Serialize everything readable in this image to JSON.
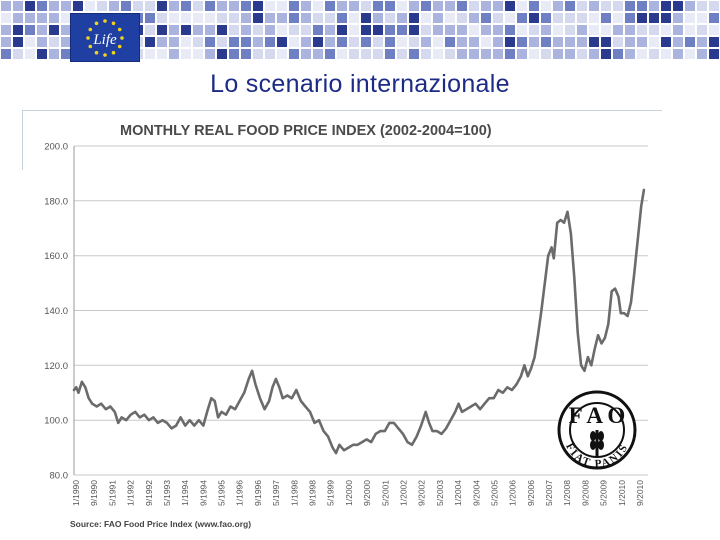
{
  "header": {
    "logo_text": "Life",
    "title": "Lo scenario internazionale"
  },
  "colors": {
    "title": "#1b2b86",
    "line": "#6b6b6b",
    "grid": "#c9c9c9",
    "logo_bg": "#1f3fa3",
    "stars": "#f2d21b",
    "mosaic": [
      "#2a3b8f",
      "#6f7fc4",
      "#aab4de",
      "#d4d9ee",
      "#e8ebf6"
    ]
  },
  "logos": {
    "fao_letters": "F A O",
    "fao_motto": "FIAT PANIS"
  },
  "chart_data": {
    "type": "line",
    "title": "MONTHLY REAL FOOD PRICE INDEX (2002-2004=100)",
    "xlabel": "",
    "ylabel": "",
    "ylim": [
      80,
      200
    ],
    "yticks": [
      "200.0",
      "180.0",
      "160.0",
      "140.0",
      "120.0",
      "100.0",
      "80.0"
    ],
    "xticks": [
      "1/1990",
      "9/1990",
      "5/1991",
      "1/1992",
      "9/1992",
      "5/1993",
      "1/1994",
      "9/1994",
      "5/1995",
      "1/1996",
      "9/1996",
      "5/1997",
      "1/1998",
      "9/1998",
      "5/1999",
      "1/2000",
      "9/2000",
      "5/2001",
      "1/2002",
      "9/2002",
      "5/2003",
      "1/2004",
      "9/2004",
      "5/2005",
      "1/2006",
      "9/2006",
      "5/2007",
      "1/2008",
      "9/2008",
      "5/2009",
      "1/2010",
      "9/2010"
    ],
    "grid": true,
    "source": "Source: FAO Food Price Index (www.fao.org)",
    "series": [
      {
        "values": [
          [
            1990.0,
            111
          ],
          [
            1990.1,
            112
          ],
          [
            1990.2,
            110
          ],
          [
            1990.35,
            114
          ],
          [
            1990.5,
            112
          ],
          [
            1990.65,
            108
          ],
          [
            1990.8,
            106
          ],
          [
            1991.0,
            105
          ],
          [
            1991.2,
            106
          ],
          [
            1991.4,
            104
          ],
          [
            1991.6,
            105
          ],
          [
            1991.8,
            103
          ],
          [
            1991.95,
            99
          ],
          [
            1992.1,
            101
          ],
          [
            1992.3,
            100
          ],
          [
            1992.5,
            102
          ],
          [
            1992.7,
            103
          ],
          [
            1992.9,
            101
          ],
          [
            1993.1,
            102
          ],
          [
            1993.3,
            100
          ],
          [
            1993.5,
            101
          ],
          [
            1993.7,
            99
          ],
          [
            1993.9,
            100
          ],
          [
            1994.1,
            99
          ],
          [
            1994.3,
            97
          ],
          [
            1994.5,
            98
          ],
          [
            1994.7,
            101
          ],
          [
            1994.9,
            98
          ],
          [
            1995.1,
            100
          ],
          [
            1995.3,
            98
          ],
          [
            1995.5,
            100
          ],
          [
            1995.7,
            98
          ],
          [
            1995.9,
            104
          ],
          [
            1996.05,
            108
          ],
          [
            1996.2,
            107
          ],
          [
            1996.35,
            101
          ],
          [
            1996.5,
            103
          ],
          [
            1996.7,
            102
          ],
          [
            1996.9,
            105
          ],
          [
            1997.1,
            104
          ],
          [
            1997.3,
            107
          ],
          [
            1997.5,
            110
          ],
          [
            1997.7,
            115
          ],
          [
            1997.85,
            118
          ],
          [
            1998.0,
            113
          ],
          [
            1998.2,
            108
          ],
          [
            1998.4,
            104
          ],
          [
            1998.6,
            107
          ],
          [
            1998.75,
            112
          ],
          [
            1998.9,
            115
          ],
          [
            1999.05,
            112
          ],
          [
            1999.2,
            108
          ],
          [
            1999.4,
            109
          ],
          [
            1999.6,
            108
          ],
          [
            1999.8,
            111
          ],
          [
            2000.0,
            107
          ],
          [
            2000.2,
            105
          ],
          [
            2000.4,
            103
          ],
          [
            2000.6,
            99
          ],
          [
            2000.8,
            100
          ],
          [
            2001.0,
            96
          ],
          [
            2001.2,
            94
          ],
          [
            2001.4,
            90
          ],
          [
            2001.55,
            88
          ],
          [
            2001.7,
            91
          ],
          [
            2001.9,
            89
          ],
          [
            2002.1,
            90
          ],
          [
            2002.3,
            91
          ],
          [
            2002.5,
            91
          ],
          [
            2002.7,
            92
          ],
          [
            2002.9,
            93
          ],
          [
            2003.1,
            92
          ],
          [
            2003.3,
            95
          ],
          [
            2003.5,
            96
          ],
          [
            2003.7,
            96
          ],
          [
            2003.9,
            99
          ],
          [
            2004.1,
            99
          ],
          [
            2004.3,
            97
          ],
          [
            2004.5,
            95
          ],
          [
            2004.7,
            92
          ],
          [
            2004.9,
            91
          ],
          [
            2005.1,
            94
          ],
          [
            2005.3,
            98
          ],
          [
            2005.5,
            103
          ],
          [
            2005.65,
            99
          ],
          [
            2005.8,
            96
          ],
          [
            2006.0,
            96
          ],
          [
            2006.2,
            95
          ],
          [
            2006.4,
            97
          ],
          [
            2006.6,
            100
          ],
          [
            2006.8,
            103
          ],
          [
            2006.95,
            106
          ],
          [
            2007.1,
            103
          ],
          [
            2007.3,
            104
          ],
          [
            2007.5,
            105
          ],
          [
            2007.7,
            106
          ],
          [
            2007.9,
            104
          ],
          [
            2008.1,
            106
          ],
          [
            2008.3,
            108
          ],
          [
            2008.5,
            108
          ],
          [
            2008.7,
            111
          ],
          [
            2008.9,
            110
          ],
          [
            2009.1,
            112
          ],
          [
            2009.3,
            111
          ],
          [
            2009.5,
            113
          ],
          [
            2009.7,
            116
          ],
          [
            2009.85,
            120
          ],
          [
            2010.0,
            116
          ],
          [
            2010.15,
            119
          ],
          [
            2010.3,
            123
          ],
          [
            2010.45,
            131
          ],
          [
            2010.6,
            140
          ],
          [
            2010.75,
            150
          ],
          [
            2010.9,
            160
          ],
          [
            2011.05,
            163
          ],
          [
            2011.15,
            159
          ],
          [
            2011.3,
            172
          ],
          [
            2011.45,
            173
          ],
          [
            2011.6,
            172
          ],
          [
            2011.75,
            176
          ],
          [
            2011.9,
            168
          ],
          [
            2012.05,
            152
          ],
          [
            2012.2,
            132
          ],
          [
            2012.35,
            120
          ],
          [
            2012.5,
            118
          ],
          [
            2012.65,
            123
          ],
          [
            2012.8,
            120
          ],
          [
            2012.95,
            126
          ],
          [
            2013.1,
            131
          ],
          [
            2013.25,
            128
          ],
          [
            2013.4,
            130
          ],
          [
            2013.55,
            135
          ],
          [
            2013.7,
            147
          ],
          [
            2013.85,
            148
          ],
          [
            2014.0,
            145
          ],
          [
            2014.1,
            139
          ],
          [
            2014.25,
            139
          ],
          [
            2014.4,
            138
          ],
          [
            2014.55,
            143
          ],
          [
            2014.7,
            154
          ],
          [
            2014.85,
            166
          ],
          [
            2015.0,
            178
          ],
          [
            2015.12,
            184
          ]
        ]
      }
    ]
  }
}
